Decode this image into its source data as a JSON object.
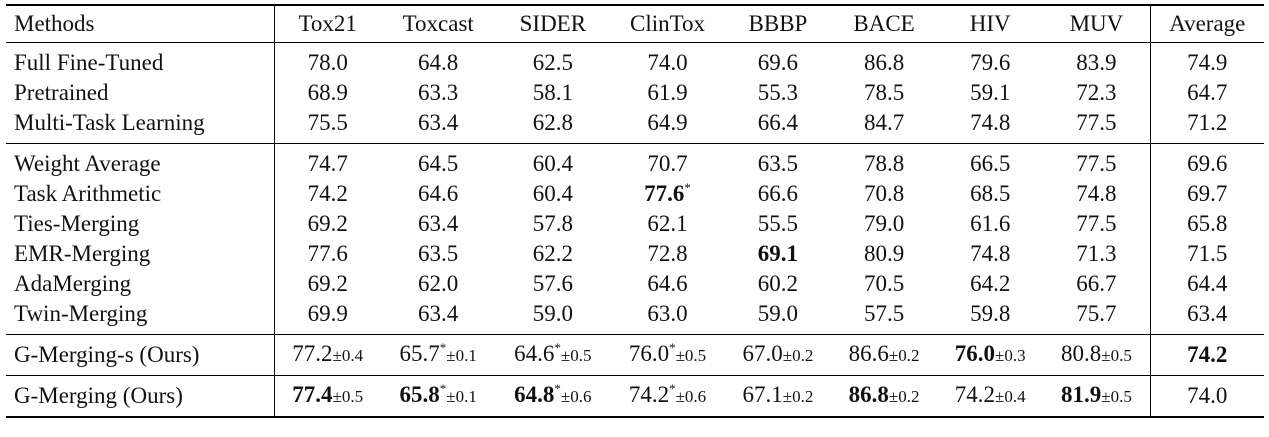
{
  "table": {
    "headers": [
      "Methods",
      "Tox21",
      "Toxcast",
      "SIDER",
      "ClinTox",
      "BBBP",
      "BACE",
      "HIV",
      "MUV",
      "Average"
    ],
    "groups": [
      {
        "rows": [
          {
            "method": "Full Fine-Tuned",
            "cells": [
              {
                "v": "78.0"
              },
              {
                "v": "64.8"
              },
              {
                "v": "62.5"
              },
              {
                "v": "74.0"
              },
              {
                "v": "69.6"
              },
              {
                "v": "86.8"
              },
              {
                "v": "79.6"
              },
              {
                "v": "83.9"
              },
              {
                "v": "74.9"
              }
            ]
          },
          {
            "method": "Pretrained",
            "cells": [
              {
                "v": "68.9"
              },
              {
                "v": "63.3"
              },
              {
                "v": "58.1"
              },
              {
                "v": "61.9"
              },
              {
                "v": "55.3"
              },
              {
                "v": "78.5"
              },
              {
                "v": "59.1"
              },
              {
                "v": "72.3"
              },
              {
                "v": "64.7"
              }
            ]
          },
          {
            "method": "Multi-Task Learning",
            "cells": [
              {
                "v": "75.5"
              },
              {
                "v": "63.4"
              },
              {
                "v": "62.8"
              },
              {
                "v": "64.9"
              },
              {
                "v": "66.4"
              },
              {
                "v": "84.7"
              },
              {
                "v": "74.8"
              },
              {
                "v": "77.5"
              },
              {
                "v": "71.2"
              }
            ]
          }
        ]
      },
      {
        "rows": [
          {
            "method": "Weight Average",
            "cells": [
              {
                "v": "74.7"
              },
              {
                "v": "64.5"
              },
              {
                "v": "60.4"
              },
              {
                "v": "70.7"
              },
              {
                "v": "63.5"
              },
              {
                "v": "78.8"
              },
              {
                "v": "66.5"
              },
              {
                "v": "77.5"
              },
              {
                "v": "69.6"
              }
            ]
          },
          {
            "method": "Task Arithmetic",
            "cells": [
              {
                "v": "74.2"
              },
              {
                "v": "64.6"
              },
              {
                "v": "60.4"
              },
              {
                "v": "77.6",
                "b": true,
                "star": "*"
              },
              {
                "v": "66.6"
              },
              {
                "v": "70.8"
              },
              {
                "v": "68.5"
              },
              {
                "v": "74.8"
              },
              {
                "v": "69.7"
              }
            ]
          },
          {
            "method": "Ties-Merging",
            "cells": [
              {
                "v": "69.2"
              },
              {
                "v": "63.4"
              },
              {
                "v": "57.8"
              },
              {
                "v": "62.1"
              },
              {
                "v": "55.5"
              },
              {
                "v": "79.0"
              },
              {
                "v": "61.6"
              },
              {
                "v": "77.5"
              },
              {
                "v": "65.8"
              }
            ]
          },
          {
            "method": "EMR-Merging",
            "cells": [
              {
                "v": "77.6"
              },
              {
                "v": "63.5"
              },
              {
                "v": "62.2"
              },
              {
                "v": "72.8"
              },
              {
                "v": "69.1",
                "b": true
              },
              {
                "v": "80.9"
              },
              {
                "v": "74.8"
              },
              {
                "v": "71.3"
              },
              {
                "v": "71.5"
              }
            ]
          },
          {
            "method": "AdaMerging",
            "cells": [
              {
                "v": "69.2"
              },
              {
                "v": "62.0"
              },
              {
                "v": "57.6"
              },
              {
                "v": "64.6"
              },
              {
                "v": "60.2"
              },
              {
                "v": "70.5"
              },
              {
                "v": "64.2"
              },
              {
                "v": "66.7"
              },
              {
                "v": "64.4"
              }
            ]
          },
          {
            "method": "Twin-Merging",
            "cells": [
              {
                "v": "69.9"
              },
              {
                "v": "63.4"
              },
              {
                "v": "59.0"
              },
              {
                "v": "63.0"
              },
              {
                "v": "59.0"
              },
              {
                "v": "57.5"
              },
              {
                "v": "59.8"
              },
              {
                "v": "75.7"
              },
              {
                "v": "63.4"
              }
            ]
          }
        ]
      },
      {
        "rows": [
          {
            "method": "G-Merging-s (Ours)",
            "method_bold": true,
            "cells": [
              {
                "v": "77.2",
                "sd": "±0.4"
              },
              {
                "v": "65.7",
                "star": "*",
                "sd": "±0.1"
              },
              {
                "v": "64.6",
                "star": "*",
                "sd": "±0.5"
              },
              {
                "v": "76.0",
                "star": "*",
                "sd": "±0.5"
              },
              {
                "v": "67.0",
                "sd": "±0.2"
              },
              {
                "v": "86.6",
                "sd": "±0.2"
              },
              {
                "v": "76.0",
                "b": true,
                "sd": "±0.3"
              },
              {
                "v": "80.8",
                "sd": "±0.5"
              },
              {
                "v": "74.2",
                "b": true
              }
            ]
          }
        ]
      },
      {
        "rows": [
          {
            "method": "G-Merging (Ours)",
            "method_bold": true,
            "cells": [
              {
                "v": "77.4",
                "b": true,
                "sd": "±0.5"
              },
              {
                "v": "65.8",
                "b": true,
                "star": "*",
                "sd": "±0.1"
              },
              {
                "v": "64.8",
                "b": true,
                "star": "*",
                "sd": "±0.6"
              },
              {
                "v": "74.2",
                "star": "*",
                "sd": "±0.6"
              },
              {
                "v": "67.1",
                "sd": "±0.2"
              },
              {
                "v": "86.8",
                "b": true,
                "sd": "±0.2"
              },
              {
                "v": "74.2",
                "sd": "±0.4"
              },
              {
                "v": "81.9",
                "b": true,
                "sd": "±0.5"
              },
              {
                "v": "74.0"
              }
            ]
          }
        ]
      }
    ]
  }
}
